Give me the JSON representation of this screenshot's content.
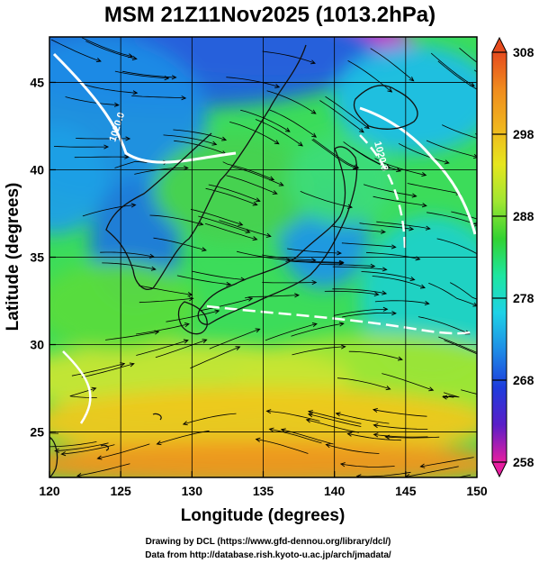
{
  "title": "MSM 21Z11Nov2025 (1013.2hPa)",
  "credits": [
    "Drawing by DCL (https://www.gfd-dennou.org/library/dcl/)",
    "Data from http://database.rish.kyoto-u.ac.jp/arch/jmadata/"
  ],
  "chart_data": {
    "type": "heatmap",
    "xlabel": "Longitude (degrees)",
    "ylabel": "Latitude  (degrees)",
    "xlim": [
      120,
      150
    ],
    "ylim": [
      22.4,
      47.6
    ],
    "x_ticks": [
      120,
      125,
      130,
      135,
      140,
      145,
      150
    ],
    "y_ticks": [
      25,
      30,
      35,
      40,
      45
    ],
    "grid": true,
    "colorbar": {
      "min": 258,
      "max": 308,
      "ticks": [
        258,
        268,
        278,
        288,
        298,
        308
      ],
      "colors": [
        "#e61ea0",
        "#5a1ec8",
        "#1e3cdc",
        "#1e8ce6",
        "#1ed2e6",
        "#1ee6a0",
        "#32d232",
        "#a0e632",
        "#e6e61e",
        "#f0b41e",
        "#f08c1e",
        "#e64b1e"
      ]
    },
    "contours": [
      {
        "label": "1020.0"
      },
      {
        "label": "1020.0"
      }
    ]
  }
}
